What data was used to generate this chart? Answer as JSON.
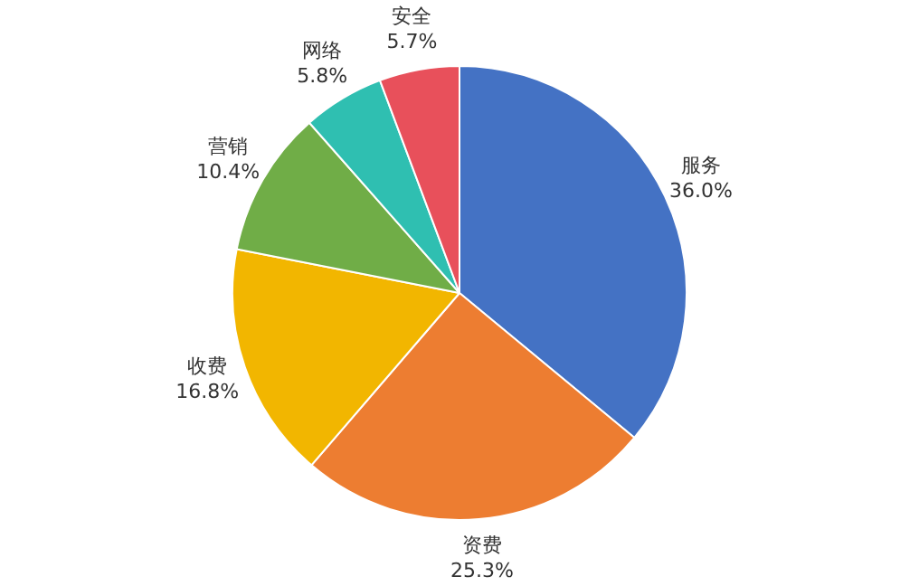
{
  "chart_data": {
    "type": "pie",
    "categories": [
      "服务",
      "资费",
      "收费",
      "营销",
      "网络",
      "安全"
    ],
    "values": [
      36.0,
      25.3,
      16.8,
      10.4,
      5.8,
      5.7
    ],
    "value_labels": [
      "36.0%",
      "25.3%",
      "16.8%",
      "10.4%",
      "5.8%",
      "5.7%"
    ],
    "colors": [
      "#4472c4",
      "#ed7d31",
      "#f2b600",
      "#70ad47",
      "#2fbfb1",
      "#e8505b"
    ],
    "legend": false
  }
}
